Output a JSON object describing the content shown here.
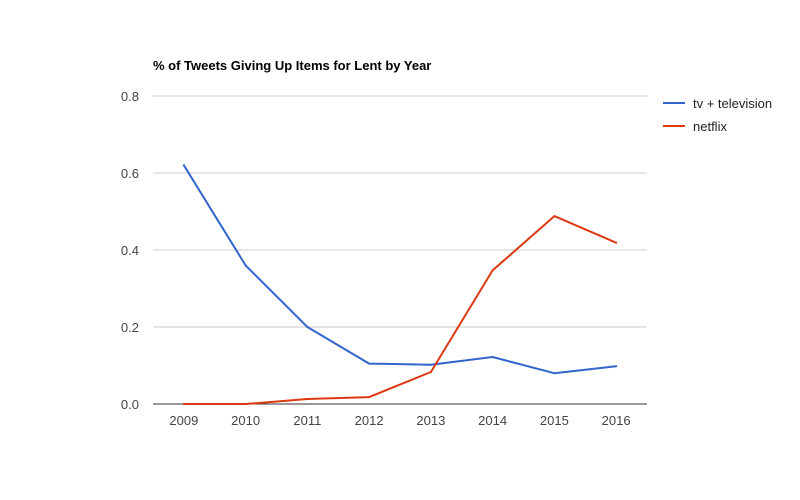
{
  "chart_data": {
    "type": "line",
    "title": "% of Tweets Giving Up Items for Lent by Year",
    "xlabel": "",
    "ylabel": "",
    "categories": [
      "2009",
      "2010",
      "2011",
      "2012",
      "2013",
      "2014",
      "2015",
      "2016"
    ],
    "ylim": [
      0,
      0.8
    ],
    "yticks": [
      "0.0",
      "0.2",
      "0.4",
      "0.6",
      "0.8"
    ],
    "grid": true,
    "legend_position": "right",
    "series": [
      {
        "name": "tv + television",
        "color": "#3366cc",
        "values": [
          0.62,
          0.36,
          0.2,
          0.105,
          0.102,
          0.122,
          0.08,
          0.098
        ]
      },
      {
        "name": "netflix",
        "color": "#dc3912",
        "values": [
          0.0,
          0.0,
          0.013,
          0.018,
          0.083,
          0.347,
          0.488,
          0.419
        ]
      }
    ]
  }
}
